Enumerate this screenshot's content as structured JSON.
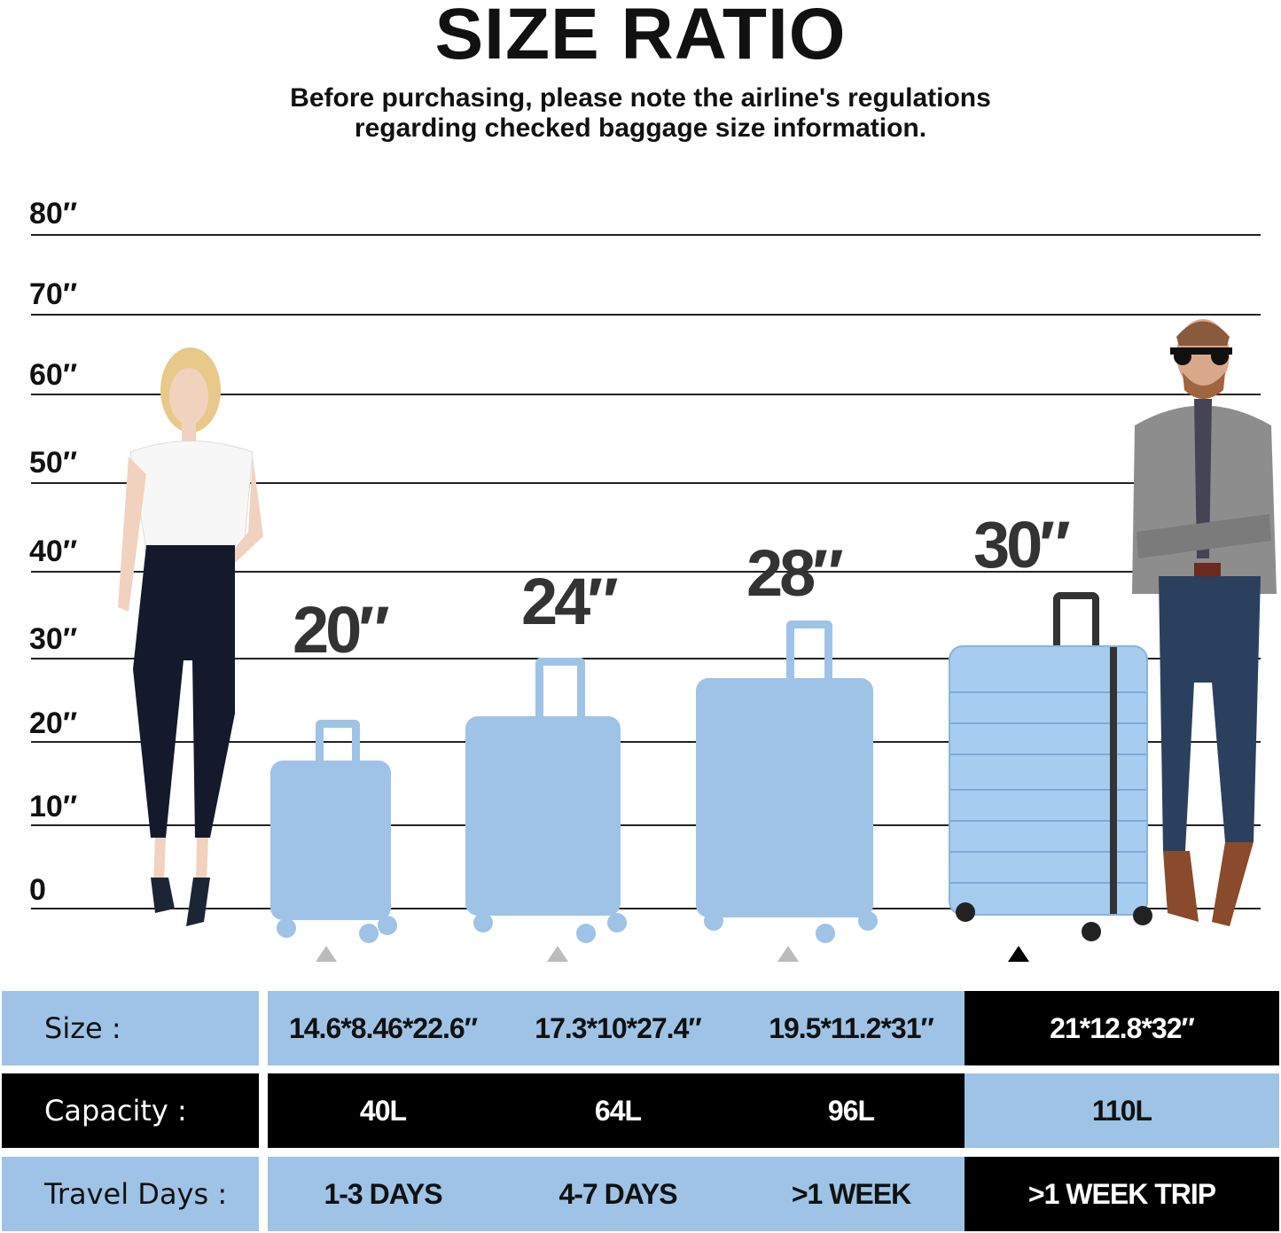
{
  "header": {
    "title": "SIZE RATIO",
    "subtitle_line1": "Before purchasing, please note the airline's regulations",
    "subtitle_line2": "regarding checked baggage size information."
  },
  "scale": {
    "labels": [
      "80″",
      "70″",
      "60″",
      "50″",
      "40″",
      "30″",
      "20″",
      "10″",
      "0"
    ]
  },
  "suitcases": [
    {
      "label": "20″",
      "highlighted": false
    },
    {
      "label": "24″",
      "highlighted": false
    },
    {
      "label": "28″",
      "highlighted": false
    },
    {
      "label": "30″",
      "highlighted": true
    }
  ],
  "colors": {
    "accent_blue": "#9fc3e6",
    "dark": "#000000"
  },
  "table": {
    "rows": [
      {
        "label": "Size :",
        "values": [
          "14.6*8.46*22.6″",
          "17.3*10*27.4″",
          "19.5*11.2*31″",
          "21*12.8*32″"
        ]
      },
      {
        "label": "Capacity :",
        "values": [
          "40L",
          "64L",
          "96L",
          "110L"
        ]
      },
      {
        "label": "Travel Days :",
        "values": [
          "1-3 DAYS",
          "4-7 DAYS",
          ">1 WEEK",
          ">1 WEEK TRIP"
        ]
      }
    ]
  }
}
